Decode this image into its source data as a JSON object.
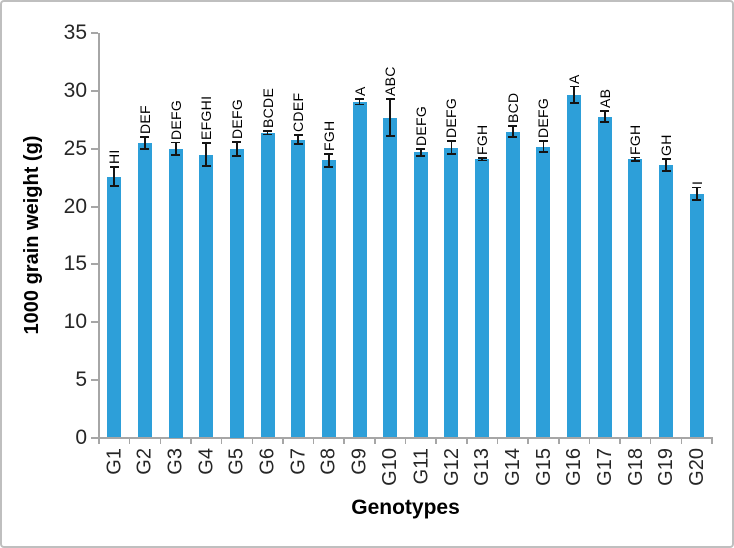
{
  "chart_data": {
    "type": "bar",
    "title": "",
    "xlabel": "Genotypes",
    "ylabel": "1000 grain weight (g)",
    "categories": [
      "G1",
      "G2",
      "G3",
      "G4",
      "G5",
      "G6",
      "G7",
      "G8",
      "G9",
      "G10",
      "G11",
      "G12",
      "G13",
      "G14",
      "G15",
      "G16",
      "G17",
      "G18",
      "G19",
      "G20"
    ],
    "values": [
      22.6,
      25.5,
      25.0,
      24.5,
      25.0,
      26.4,
      25.8,
      24.0,
      29.1,
      27.7,
      24.7,
      25.1,
      24.1,
      26.5,
      25.2,
      29.7,
      27.8,
      24.1,
      23.6,
      21.1
    ],
    "error_bars": [
      0.8,
      0.5,
      0.55,
      1.0,
      0.6,
      0.15,
      0.4,
      0.55,
      0.25,
      1.6,
      0.3,
      0.55,
      0.1,
      0.5,
      0.5,
      0.7,
      0.5,
      0.15,
      0.55,
      0.55
    ],
    "sig_letters": [
      "HI",
      "DEF",
      "DEFG",
      "EFGHI",
      "DEFG",
      "BCDE",
      "CDEF",
      "FGH",
      "A",
      "ABC",
      "DEFG",
      "DEFG",
      "FGH",
      "BCD",
      "DEFG",
      "A",
      "AB",
      "FGH",
      "GH",
      "I"
    ],
    "ylim": [
      0,
      35
    ],
    "ytick_step": 5,
    "yticks": [
      0,
      5,
      10,
      15,
      20,
      25,
      30,
      35
    ],
    "grid": false,
    "legend": false,
    "bar_color": "#2d9fd9",
    "error_color": "#141414",
    "axis_color": "#a6a6a6",
    "tick_text_color": "#262626",
    "border_color": "#bfbfbf"
  }
}
